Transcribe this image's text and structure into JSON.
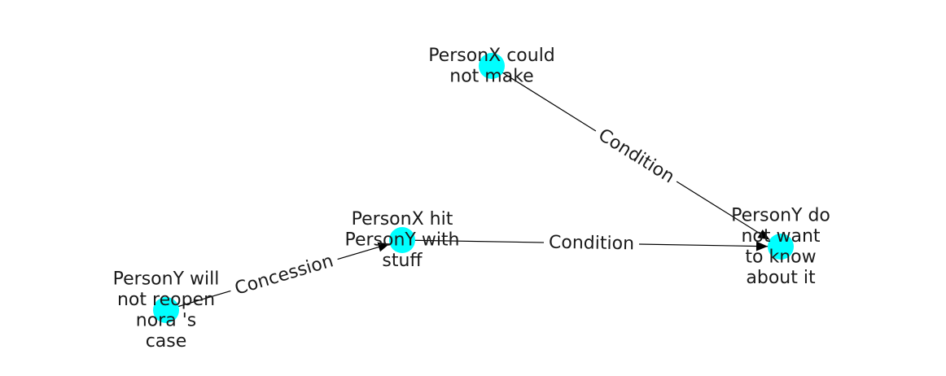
{
  "colors": {
    "node_fill": "#00ffff",
    "edge": "#000000",
    "text": "#1a1a1a",
    "background": "#ffffff"
  },
  "nodes": [
    {
      "id": "n1",
      "lines": [
        "PersonX could",
        "not make"
      ]
    },
    {
      "id": "n2",
      "lines": [
        "PersonY do",
        "not want",
        "to know",
        "about it"
      ]
    },
    {
      "id": "n3",
      "lines": [
        "PersonX hit",
        "PersonY with",
        "stuff"
      ]
    },
    {
      "id": "n4",
      "lines": [
        "PersonY will",
        "not reopen",
        "nora 's",
        "case"
      ]
    }
  ],
  "edges": [
    {
      "id": "e1",
      "source": "n1",
      "target": "n2",
      "label": "Condition"
    },
    {
      "id": "e2",
      "source": "n3",
      "target": "n2",
      "label": "Condition"
    },
    {
      "id": "e3",
      "source": "n4",
      "target": "n3",
      "label": "Concession"
    }
  ]
}
